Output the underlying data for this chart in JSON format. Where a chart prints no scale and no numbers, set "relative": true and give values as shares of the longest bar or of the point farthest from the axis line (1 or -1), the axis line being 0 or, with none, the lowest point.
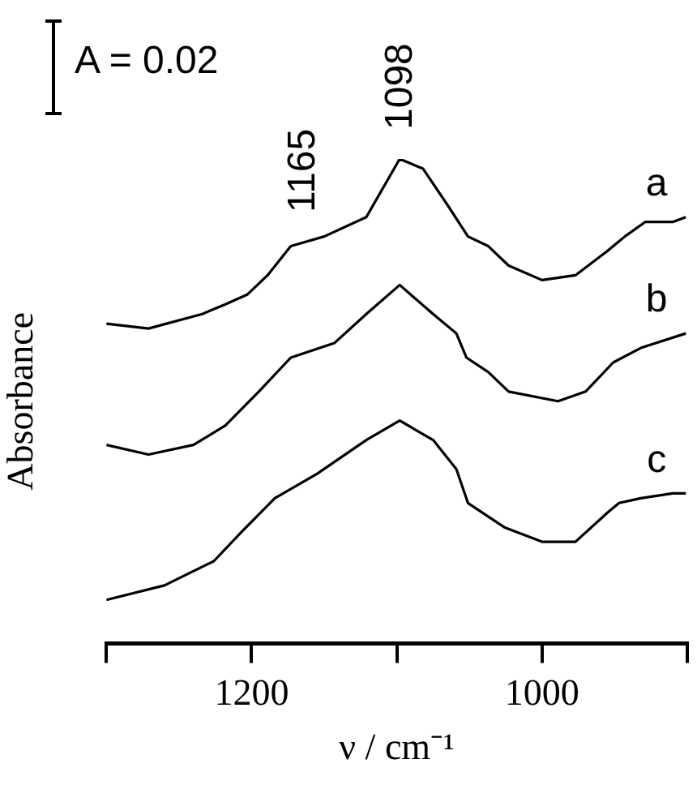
{
  "chart_data": {
    "type": "line",
    "relative": true,
    "xlabel": "ν / cm⁻¹",
    "ylabel": "Absorbance",
    "xlim": [
      1300,
      900
    ],
    "xticks": [
      {
        "value": 1300,
        "label": null
      },
      1200,
      {
        "value": 1100,
        "label": null
      },
      1000,
      {
        "value": 900,
        "label": null
      }
    ],
    "grid": false,
    "legend": false,
    "marker": "none",
    "line_style": "solid",
    "annotations": [
      "A = 0.02",
      {
        "text": "1165",
        "x": 1165,
        "y": 0.83
      },
      {
        "text": "1098",
        "x": 1098,
        "y": 1
      }
    ],
    "series": [
      {
        "name": "a",
        "color": "#000000",
        "x": [
          1300,
          1271,
          1234,
          1218,
          1203,
          1189,
          1173,
          1150,
          1121,
          1098,
          1082,
          1064,
          1051,
          1037,
          1023,
          1000,
          977,
          955,
          943,
          929,
          910,
          901
        ],
        "values": [
          0.66,
          0.65,
          0.68,
          0.7,
          0.72,
          0.76,
          0.82,
          0.84,
          0.88,
          1.0,
          0.98,
          0.9,
          0.84,
          0.82,
          0.78,
          0.75,
          0.76,
          0.81,
          0.84,
          0.87,
          0.87,
          0.88
        ]
      },
      {
        "name": "b",
        "color": "#000000",
        "x": [
          1300,
          1271,
          1240,
          1218,
          1195,
          1173,
          1143,
          1121,
          1098,
          1075,
          1059,
          1052,
          1037,
          1023,
          989,
          970,
          951,
          932,
          901
        ],
        "values": [
          0.41,
          0.39,
          0.41,
          0.45,
          0.52,
          0.59,
          0.62,
          0.68,
          0.74,
          0.68,
          0.64,
          0.59,
          0.56,
          0.52,
          0.5,
          0.52,
          0.58,
          0.61,
          0.64
        ]
      },
      {
        "name": "c",
        "color": "#000000",
        "x": [
          1300,
          1260,
          1226,
          1207,
          1184,
          1155,
          1121,
          1098,
          1075,
          1059,
          1051,
          1026,
          1000,
          977,
          955,
          947,
          932,
          910,
          901
        ],
        "values": [
          0.09,
          0.12,
          0.17,
          0.23,
          0.3,
          0.35,
          0.42,
          0.46,
          0.42,
          0.36,
          0.29,
          0.24,
          0.21,
          0.21,
          0.27,
          0.29,
          0.3,
          0.31,
          0.31
        ]
      }
    ]
  }
}
